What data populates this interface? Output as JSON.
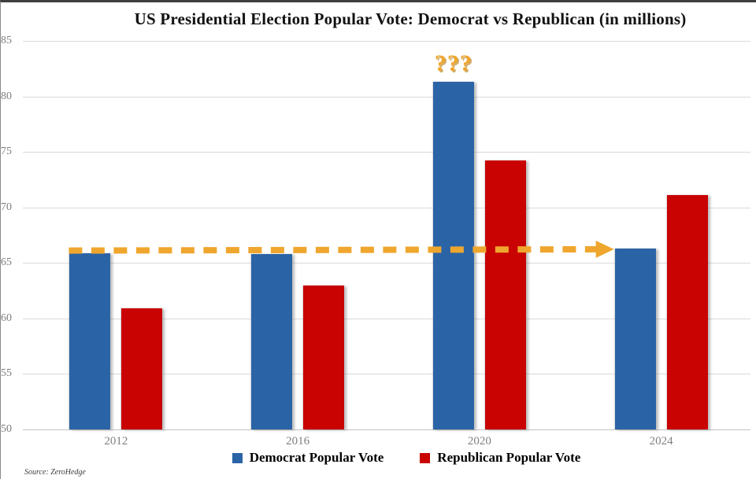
{
  "title": "US Presidential Election Popular Vote: Democrat vs Republican (in millions)",
  "source": "Source: ZeroHedge",
  "legend": {
    "democrat_label": "Democrat Popular Vote",
    "republican_label": "Republican Popular Vote"
  },
  "colors": {
    "democrat": "#2B64A6",
    "republican": "#C90202",
    "annotation_gold": "#EFA62E",
    "gridline": "#D9D9D9",
    "tick_text": "#7F7F7F",
    "title_text": "#121212"
  },
  "chart_data": {
    "type": "bar",
    "title": "US Presidential Election Popular Vote: Democrat vs Republican (in millions)",
    "categories": [
      "2012",
      "2016",
      "2020",
      "2024"
    ],
    "series": [
      {
        "name": "Democrat Popular Vote",
        "color": "#2B64A6",
        "values": [
          65.9,
          65.8,
          81.3,
          66.3
        ]
      },
      {
        "name": "Republican Popular Vote",
        "color": "#C90202",
        "values": [
          60.9,
          63.0,
          74.2,
          71.1
        ]
      }
    ],
    "xlabel": "",
    "ylabel": "",
    "ylim": [
      50,
      85
    ],
    "yticks": [
      85,
      80,
      75,
      70,
      65,
      60,
      55,
      50
    ],
    "grid": true,
    "legend_position": "bottom",
    "annotations": {
      "question_marks": {
        "text": "???",
        "over_series": "Democrat Popular Vote",
        "over_category": "2020",
        "color": "#EFA62E"
      },
      "dashed_arrow": {
        "meaning": "flat Democrat vote level from 2012/2016 pointing at 2024 bar",
        "from_category": "2012",
        "to_category": "2024",
        "from_value": 65.9,
        "to_value": 66.3,
        "color": "#EFA62E"
      }
    }
  }
}
